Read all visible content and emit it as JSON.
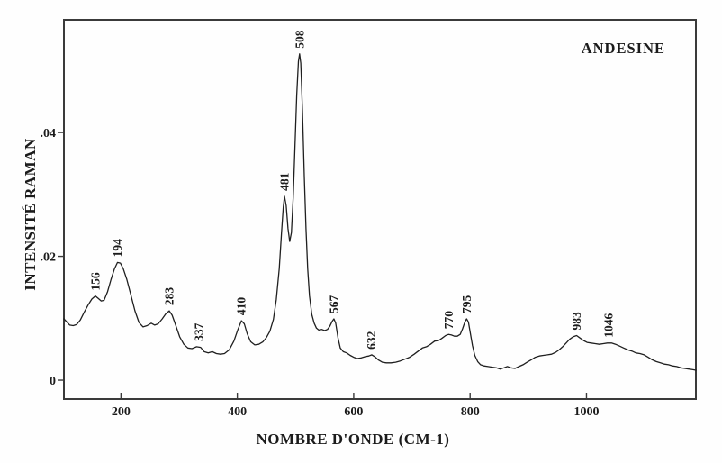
{
  "chart_data": {
    "type": "line",
    "title": "",
    "annotation": "ANDESINE",
    "xlabel": "NOMBRE D'ONDE (CM-1)",
    "ylabel": "INTENSITÉ RAMAN",
    "grid": false,
    "legend": "none",
    "xlim": [
      102,
      1188
    ],
    "ylim": [
      -0.00305,
      0.0582
    ],
    "x_ticks": [
      {
        "label": "200",
        "value": 200
      },
      {
        "label": "400",
        "value": 400
      },
      {
        "label": "600",
        "value": 600
      },
      {
        "label": "800",
        "value": 800
      },
      {
        "label": "1000",
        "value": 1000
      }
    ],
    "y_ticks": [
      {
        "label": "0",
        "value": 0
      },
      {
        "label": ".02",
        "value": 0.02
      },
      {
        "label": ".04",
        "value": 0.04
      }
    ],
    "line_color": "#1f1f1f",
    "frame_color": "#3a3a3a",
    "text_color": "#1b1b1b",
    "background_color": "#fefefe",
    "peaks": [
      {
        "label": "156",
        "x": 156,
        "y": 0.0136
      },
      {
        "label": "194",
        "x": 194,
        "y": 0.019
      },
      {
        "label": "283",
        "x": 283,
        "y": 0.0112
      },
      {
        "label": "337",
        "x": 334,
        "y": 0.0054
      },
      {
        "label": "410",
        "x": 407,
        "y": 0.0096
      },
      {
        "label": "481",
        "x": 481,
        "y": 0.0297
      },
      {
        "label": "508",
        "x": 507,
        "y": 0.0527
      },
      {
        "label": "567",
        "x": 566,
        "y": 0.0099
      },
      {
        "label": "632",
        "x": 630,
        "y": 0.0041
      },
      {
        "label": "770",
        "x": 763,
        "y": 0.0074
      },
      {
        "label": "795",
        "x": 794,
        "y": 0.0099
      },
      {
        "label": "983",
        "x": 983,
        "y": 0.0072
      },
      {
        "label": "1046",
        "x": 1038,
        "y": 0.006
      }
    ],
    "series": [
      {
        "name": "raman-spectrum",
        "points": [
          [
            102,
            0.0099
          ],
          [
            107,
            0.0094
          ],
          [
            112,
            0.0089
          ],
          [
            118,
            0.0088
          ],
          [
            124,
            0.009
          ],
          [
            130,
            0.0097
          ],
          [
            137,
            0.011
          ],
          [
            144,
            0.0122
          ],
          [
            150,
            0.0131
          ],
          [
            156,
            0.0136
          ],
          [
            161,
            0.0132
          ],
          [
            166,
            0.0128
          ],
          [
            171,
            0.0129
          ],
          [
            177,
            0.0143
          ],
          [
            183,
            0.0163
          ],
          [
            189,
            0.018
          ],
          [
            194,
            0.019
          ],
          [
            199,
            0.0189
          ],
          [
            204,
            0.018
          ],
          [
            210,
            0.0163
          ],
          [
            217,
            0.0138
          ],
          [
            224,
            0.0112
          ],
          [
            231,
            0.0093
          ],
          [
            238,
            0.0086
          ],
          [
            245,
            0.0088
          ],
          [
            252,
            0.0092
          ],
          [
            258,
            0.0089
          ],
          [
            264,
            0.0091
          ],
          [
            271,
            0.0099
          ],
          [
            277,
            0.0107
          ],
          [
            283,
            0.0112
          ],
          [
            288,
            0.0105
          ],
          [
            294,
            0.0089
          ],
          [
            301,
            0.007
          ],
          [
            308,
            0.0058
          ],
          [
            315,
            0.0052
          ],
          [
            322,
            0.0051
          ],
          [
            330,
            0.0054
          ],
          [
            337,
            0.0053
          ],
          [
            343,
            0.0046
          ],
          [
            350,
            0.0044
          ],
          [
            357,
            0.0046
          ],
          [
            364,
            0.0043
          ],
          [
            371,
            0.0042
          ],
          [
            378,
            0.0043
          ],
          [
            386,
            0.0049
          ],
          [
            394,
            0.0063
          ],
          [
            401,
            0.0082
          ],
          [
            407,
            0.0096
          ],
          [
            412,
            0.0091
          ],
          [
            417,
            0.0075
          ],
          [
            423,
            0.0062
          ],
          [
            430,
            0.0057
          ],
          [
            437,
            0.0058
          ],
          [
            444,
            0.0062
          ],
          [
            450,
            0.0069
          ],
          [
            456,
            0.0079
          ],
          [
            462,
            0.0098
          ],
          [
            467,
            0.013
          ],
          [
            472,
            0.018
          ],
          [
            476,
            0.024
          ],
          [
            479,
            0.028
          ],
          [
            481,
            0.0297
          ],
          [
            484,
            0.0282
          ],
          [
            487,
            0.0245
          ],
          [
            490,
            0.0224
          ],
          [
            493,
            0.0238
          ],
          [
            496,
            0.0295
          ],
          [
            499,
            0.0375
          ],
          [
            502,
            0.046
          ],
          [
            505,
            0.0515
          ],
          [
            507,
            0.0527
          ],
          [
            509,
            0.0512
          ],
          [
            512,
            0.0435
          ],
          [
            515,
            0.033
          ],
          [
            518,
            0.0245
          ],
          [
            521,
            0.018
          ],
          [
            524,
            0.0136
          ],
          [
            528,
            0.0106
          ],
          [
            532,
            0.0092
          ],
          [
            536,
            0.0084
          ],
          [
            540,
            0.0081
          ],
          [
            545,
            0.0082
          ],
          [
            550,
            0.008
          ],
          [
            555,
            0.0082
          ],
          [
            559,
            0.0087
          ],
          [
            563,
            0.0095
          ],
          [
            566,
            0.0099
          ],
          [
            569,
            0.0092
          ],
          [
            573,
            0.0068
          ],
          [
            577,
            0.0052
          ],
          [
            582,
            0.0046
          ],
          [
            588,
            0.0044
          ],
          [
            594,
            0.004
          ],
          [
            600,
            0.0037
          ],
          [
            606,
            0.0035
          ],
          [
            613,
            0.0036
          ],
          [
            620,
            0.0038
          ],
          [
            626,
            0.0039
          ],
          [
            631,
            0.0041
          ],
          [
            636,
            0.0038
          ],
          [
            642,
            0.0033
          ],
          [
            649,
            0.0029
          ],
          [
            656,
            0.0028
          ],
          [
            664,
            0.0028
          ],
          [
            672,
            0.0029
          ],
          [
            680,
            0.0031
          ],
          [
            688,
            0.0034
          ],
          [
            696,
            0.0037
          ],
          [
            704,
            0.0042
          ],
          [
            711,
            0.0047
          ],
          [
            718,
            0.0052
          ],
          [
            725,
            0.0054
          ],
          [
            732,
            0.0058
          ],
          [
            739,
            0.0063
          ],
          [
            746,
            0.0064
          ],
          [
            752,
            0.0068
          ],
          [
            758,
            0.0072
          ],
          [
            763,
            0.0074
          ],
          [
            768,
            0.0073
          ],
          [
            773,
            0.0071
          ],
          [
            778,
            0.0071
          ],
          [
            783,
            0.0074
          ],
          [
            787,
            0.0083
          ],
          [
            791,
            0.0094
          ],
          [
            794,
            0.0099
          ],
          [
            797,
            0.0094
          ],
          [
            800,
            0.0078
          ],
          [
            804,
            0.0056
          ],
          [
            808,
            0.004
          ],
          [
            813,
            0.003
          ],
          [
            818,
            0.0025
          ],
          [
            824,
            0.0023
          ],
          [
            831,
            0.0022
          ],
          [
            838,
            0.0021
          ],
          [
            845,
            0.002
          ],
          [
            852,
            0.0018
          ],
          [
            858,
            0.002
          ],
          [
            864,
            0.0022
          ],
          [
            870,
            0.002
          ],
          [
            877,
            0.0019
          ],
          [
            884,
            0.0022
          ],
          [
            891,
            0.0025
          ],
          [
            898,
            0.0029
          ],
          [
            905,
            0.0033
          ],
          [
            912,
            0.0037
          ],
          [
            919,
            0.0039
          ],
          [
            926,
            0.004
          ],
          [
            933,
            0.0041
          ],
          [
            940,
            0.0042
          ],
          [
            947,
            0.0045
          ],
          [
            953,
            0.0049
          ],
          [
            959,
            0.0054
          ],
          [
            965,
            0.006
          ],
          [
            971,
            0.0066
          ],
          [
            977,
            0.007
          ],
          [
            983,
            0.0072
          ],
          [
            989,
            0.0068
          ],
          [
            995,
            0.0064
          ],
          [
            1001,
            0.0061
          ],
          [
            1008,
            0.006
          ],
          [
            1015,
            0.0059
          ],
          [
            1022,
            0.0058
          ],
          [
            1029,
            0.0059
          ],
          [
            1036,
            0.006
          ],
          [
            1043,
            0.006
          ],
          [
            1050,
            0.0058
          ],
          [
            1057,
            0.0055
          ],
          [
            1064,
            0.0052
          ],
          [
            1071,
            0.0049
          ],
          [
            1078,
            0.0047
          ],
          [
            1085,
            0.0044
          ],
          [
            1092,
            0.0043
          ],
          [
            1099,
            0.0041
          ],
          [
            1106,
            0.0037
          ],
          [
            1113,
            0.0033
          ],
          [
            1120,
            0.003
          ],
          [
            1127,
            0.0028
          ],
          [
            1134,
            0.0026
          ],
          [
            1141,
            0.0025
          ],
          [
            1148,
            0.0023
          ],
          [
            1155,
            0.0022
          ],
          [
            1162,
            0.002
          ],
          [
            1169,
            0.0019
          ],
          [
            1176,
            0.0018
          ],
          [
            1183,
            0.0017
          ],
          [
            1188,
            0.0016
          ]
        ]
      }
    ]
  }
}
